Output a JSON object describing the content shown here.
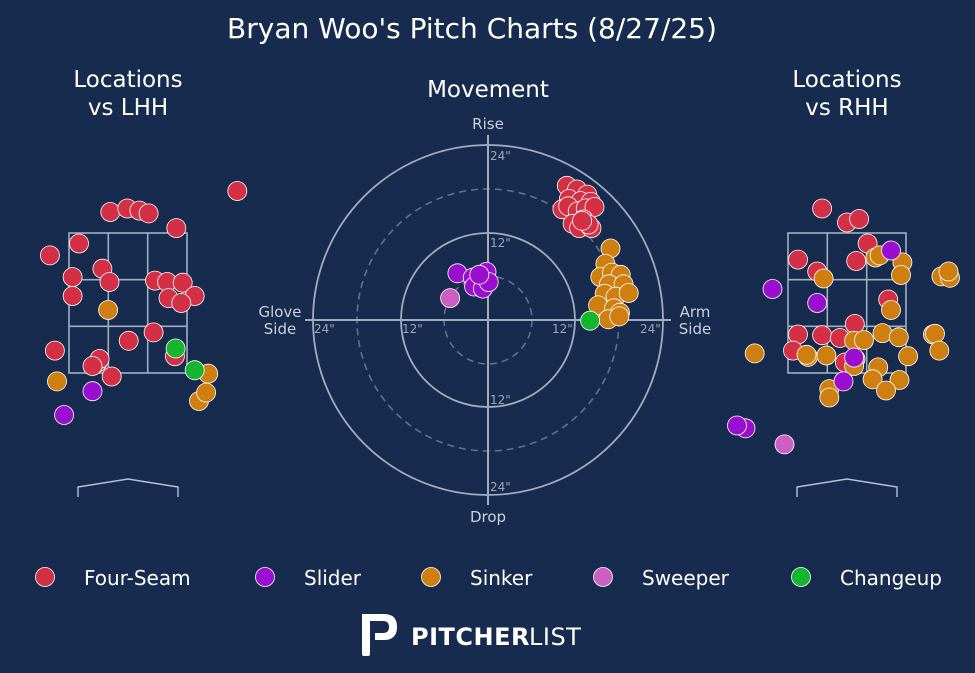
{
  "title": "Bryan Woo's Pitch Charts (8/27/25)",
  "panels": {
    "lhh_title_line1": "Locations",
    "lhh_title_line2": "vs LHH",
    "movement_title": "Movement",
    "rhh_title_line1": "Locations",
    "rhh_title_line2": "vs RHH"
  },
  "movement_axes": {
    "top": "Rise",
    "bottom": "Drop",
    "left_line1": "Glove",
    "left_line2": "Side",
    "right_line1": "Arm",
    "right_line2": "Side",
    "ticks": [
      "24\"",
      "12\"",
      "12\"",
      "24\"",
      "12\"",
      "12\"",
      "24\"",
      "24\""
    ]
  },
  "pitch_types": [
    {
      "name": "Four-Seam",
      "color": "#d32f45"
    },
    {
      "name": "Slider",
      "color": "#9a0fcf"
    },
    {
      "name": "Sinker",
      "color": "#cf7f10"
    },
    {
      "name": "Sweeper",
      "color": "#cc5fc4"
    },
    {
      "name": "Changeup",
      "color": "#15b52f"
    }
  ],
  "brand": {
    "bold": "PITCHER",
    "light": "LIST"
  },
  "chart_data": [
    {
      "type": "scatter",
      "title": "Locations vs LHH",
      "x_unit": "feet from center of plate (catcher view)",
      "y_unit": "feet above ground",
      "xlim": [
        -1.6,
        1.6
      ],
      "ylim": [
        0.0,
        5.0
      ],
      "strike_zone": {
        "x": [
          -0.83,
          0.83
        ],
        "y": [
          1.5,
          3.5
        ]
      },
      "points": [
        {
          "x": 1.54,
          "y": 4.1,
          "type": "Four-Seam"
        },
        {
          "x": -0.25,
          "y": 3.8,
          "type": "Four-Seam"
        },
        {
          "x": -0.01,
          "y": 3.85,
          "type": "Four-Seam"
        },
        {
          "x": 0.16,
          "y": 3.82,
          "type": "Four-Seam"
        },
        {
          "x": 0.29,
          "y": 3.78,
          "type": "Four-Seam"
        },
        {
          "x": 0.68,
          "y": 3.57,
          "type": "Four-Seam"
        },
        {
          "x": -1.1,
          "y": 3.18,
          "type": "Four-Seam"
        },
        {
          "x": -0.69,
          "y": 3.35,
          "type": "Four-Seam"
        },
        {
          "x": -0.36,
          "y": 2.99,
          "type": "Four-Seam"
        },
        {
          "x": -0.78,
          "y": 2.87,
          "type": "Four-Seam"
        },
        {
          "x": -0.26,
          "y": 2.8,
          "type": "Four-Seam"
        },
        {
          "x": 0.38,
          "y": 2.82,
          "type": "Four-Seam"
        },
        {
          "x": 0.55,
          "y": 2.8,
          "type": "Four-Seam"
        },
        {
          "x": 0.77,
          "y": 2.79,
          "type": "Four-Seam"
        },
        {
          "x": -0.78,
          "y": 2.6,
          "type": "Four-Seam"
        },
        {
          "x": 0.57,
          "y": 2.57,
          "type": "Four-Seam"
        },
        {
          "x": 0.94,
          "y": 2.6,
          "type": "Four-Seam"
        },
        {
          "x": 0.75,
          "y": 2.5,
          "type": "Four-Seam"
        },
        {
          "x": 0.36,
          "y": 2.08,
          "type": "Four-Seam"
        },
        {
          "x": 0.01,
          "y": 1.96,
          "type": "Four-Seam"
        },
        {
          "x": -1.03,
          "y": 1.82,
          "type": "Four-Seam"
        },
        {
          "x": -0.43,
          "y": 1.65,
          "type": "Four-Seam"
        },
        {
          "x": -0.4,
          "y": 1.7,
          "type": "Four-Seam"
        },
        {
          "x": 0.66,
          "y": 1.74,
          "type": "Four-Seam"
        },
        {
          "x": -0.23,
          "y": 1.45,
          "type": "Four-Seam"
        },
        {
          "x": -0.5,
          "y": 1.6,
          "type": "Four-Seam"
        },
        {
          "x": -0.28,
          "y": 2.4,
          "type": "Sinker"
        },
        {
          "x": -1.0,
          "y": 1.38,
          "type": "Sinker"
        },
        {
          "x": 1.13,
          "y": 1.49,
          "type": "Sinker"
        },
        {
          "x": 1.0,
          "y": 1.1,
          "type": "Sinker"
        },
        {
          "x": 1.1,
          "y": 1.22,
          "type": "Sinker"
        },
        {
          "x": -0.5,
          "y": 1.24,
          "type": "Slider"
        },
        {
          "x": -0.9,
          "y": 0.9,
          "type": "Slider"
        },
        {
          "x": 0.67,
          "y": 1.85,
          "type": "Changeup"
        },
        {
          "x": 0.94,
          "y": 1.54,
          "type": "Changeup"
        }
      ]
    },
    {
      "type": "scatter",
      "title": "Movement",
      "x_unit": "horizontal break (inches, glove side negative, arm side positive)",
      "y_unit": "induced vertical break (inches)",
      "xlim": [
        -30,
        30
      ],
      "ylim": [
        -30,
        30
      ],
      "rings_inches": [
        6,
        12,
        18,
        24
      ],
      "points": [
        {
          "x": 10.8,
          "y": 18.4,
          "type": "Four-Seam"
        },
        {
          "x": 12.2,
          "y": 17.9,
          "type": "Four-Seam"
        },
        {
          "x": 13.6,
          "y": 17.2,
          "type": "Four-Seam"
        },
        {
          "x": 11.1,
          "y": 16.6,
          "type": "Four-Seam"
        },
        {
          "x": 12.7,
          "y": 16.3,
          "type": "Four-Seam"
        },
        {
          "x": 14.1,
          "y": 16.2,
          "type": "Four-Seam"
        },
        {
          "x": 10.2,
          "y": 15.2,
          "type": "Four-Seam"
        },
        {
          "x": 11.0,
          "y": 15.6,
          "type": "Four-Seam"
        },
        {
          "x": 12.3,
          "y": 14.9,
          "type": "Four-Seam"
        },
        {
          "x": 13.4,
          "y": 15.3,
          "type": "Four-Seam"
        },
        {
          "x": 14.6,
          "y": 15.5,
          "type": "Four-Seam"
        },
        {
          "x": 11.6,
          "y": 13.2,
          "type": "Four-Seam"
        },
        {
          "x": 12.5,
          "y": 12.6,
          "type": "Four-Seam"
        },
        {
          "x": 13.1,
          "y": 13.8,
          "type": "Four-Seam"
        },
        {
          "x": 14.2,
          "y": 12.6,
          "type": "Four-Seam"
        },
        {
          "x": 13.8,
          "y": 13.1,
          "type": "Four-Seam"
        },
        {
          "x": 12.9,
          "y": 13.6,
          "type": "Four-Seam"
        },
        {
          "x": 16.8,
          "y": 9.8,
          "type": "Sinker"
        },
        {
          "x": 16.1,
          "y": 7.7,
          "type": "Sinker"
        },
        {
          "x": 15.4,
          "y": 5.9,
          "type": "Sinker"
        },
        {
          "x": 17.0,
          "y": 6.5,
          "type": "Sinker"
        },
        {
          "x": 18.2,
          "y": 6.2,
          "type": "Sinker"
        },
        {
          "x": 16.6,
          "y": 4.9,
          "type": "Sinker"
        },
        {
          "x": 18.6,
          "y": 4.9,
          "type": "Sinker"
        },
        {
          "x": 16.0,
          "y": 3.6,
          "type": "Sinker"
        },
        {
          "x": 17.5,
          "y": 3.2,
          "type": "Sinker"
        },
        {
          "x": 19.3,
          "y": 3.7,
          "type": "Sinker"
        },
        {
          "x": 15.1,
          "y": 2.0,
          "type": "Sinker"
        },
        {
          "x": 17.3,
          "y": 1.6,
          "type": "Sinker"
        },
        {
          "x": 18.1,
          "y": 1.0,
          "type": "Sinker"
        },
        {
          "x": 16.5,
          "y": 0.1,
          "type": "Sinker"
        },
        {
          "x": 18.0,
          "y": 0.5,
          "type": "Sinker"
        },
        {
          "x": 14.0,
          "y": -0.1,
          "type": "Changeup"
        },
        {
          "x": -4.2,
          "y": 6.4,
          "type": "Slider"
        },
        {
          "x": -2.1,
          "y": 5.8,
          "type": "Slider"
        },
        {
          "x": -0.2,
          "y": 6.6,
          "type": "Slider"
        },
        {
          "x": -1.9,
          "y": 4.6,
          "type": "Slider"
        },
        {
          "x": -0.7,
          "y": 4.3,
          "type": "Slider"
        },
        {
          "x": 0.1,
          "y": 5.2,
          "type": "Slider"
        },
        {
          "x": -1.2,
          "y": 6.2,
          "type": "Slider"
        },
        {
          "x": -5.2,
          "y": 3.0,
          "type": "Sweeper"
        }
      ]
    },
    {
      "type": "scatter",
      "title": "Locations vs RHH",
      "x_unit": "feet from center of plate (catcher view)",
      "y_unit": "feet above ground",
      "xlim": [
        -1.6,
        1.6
      ],
      "ylim": [
        0.0,
        5.0
      ],
      "strike_zone": {
        "x": [
          -0.83,
          0.83
        ],
        "y": [
          1.5,
          3.5
        ]
      },
      "points": [
        {
          "x": -0.35,
          "y": 3.85,
          "type": "Four-Seam"
        },
        {
          "x": 0.0,
          "y": 3.65,
          "type": "Four-Seam"
        },
        {
          "x": 0.17,
          "y": 3.7,
          "type": "Four-Seam"
        },
        {
          "x": 0.29,
          "y": 3.35,
          "type": "Four-Seam"
        },
        {
          "x": -0.69,
          "y": 3.12,
          "type": "Four-Seam"
        },
        {
          "x": -0.42,
          "y": 2.95,
          "type": "Four-Seam"
        },
        {
          "x": 0.13,
          "y": 3.1,
          "type": "Four-Seam"
        },
        {
          "x": 0.58,
          "y": 2.55,
          "type": "Four-Seam"
        },
        {
          "x": -0.69,
          "y": 2.05,
          "type": "Four-Seam"
        },
        {
          "x": -0.35,
          "y": 2.04,
          "type": "Four-Seam"
        },
        {
          "x": -0.1,
          "y": 2.0,
          "type": "Four-Seam"
        },
        {
          "x": 0.11,
          "y": 2.2,
          "type": "Four-Seam"
        },
        {
          "x": -0.76,
          "y": 1.82,
          "type": "Four-Seam"
        },
        {
          "x": -0.03,
          "y": 1.65,
          "type": "Four-Seam"
        },
        {
          "x": -0.33,
          "y": 2.85,
          "type": "Sinker"
        },
        {
          "x": 0.4,
          "y": 3.15,
          "type": "Sinker"
        },
        {
          "x": 0.46,
          "y": 3.18,
          "type": "Sinker"
        },
        {
          "x": 0.78,
          "y": 3.08,
          "type": "Sinker"
        },
        {
          "x": 0.76,
          "y": 2.9,
          "type": "Sinker"
        },
        {
          "x": 1.33,
          "y": 2.88,
          "type": "Sinker"
        },
        {
          "x": 1.45,
          "y": 2.86,
          "type": "Sinker"
        },
        {
          "x": 1.43,
          "y": 2.95,
          "type": "Sinker"
        },
        {
          "x": 0.12,
          "y": 1.7,
          "type": "Sinker"
        },
        {
          "x": -0.55,
          "y": 1.73,
          "type": "Sinker"
        },
        {
          "x": 0.1,
          "y": 1.96,
          "type": "Sinker"
        },
        {
          "x": 0.62,
          "y": 2.4,
          "type": "Sinker"
        },
        {
          "x": 0.5,
          "y": 2.07,
          "type": "Sinker"
        },
        {
          "x": 0.24,
          "y": 1.97,
          "type": "Sinker"
        },
        {
          "x": 0.73,
          "y": 2.01,
          "type": "Sinker"
        },
        {
          "x": 1.21,
          "y": 2.05,
          "type": "Sinker"
        },
        {
          "x": 1.24,
          "y": 2.06,
          "type": "Sinker"
        },
        {
          "x": 0.86,
          "y": 1.74,
          "type": "Sinker"
        },
        {
          "x": -0.29,
          "y": 1.75,
          "type": "Sinker"
        },
        {
          "x": 0.1,
          "y": 1.6,
          "type": "Sinker"
        },
        {
          "x": -0.57,
          "y": 1.76,
          "type": "Sinker"
        },
        {
          "x": 0.44,
          "y": 1.58,
          "type": "Sinker"
        },
        {
          "x": 1.3,
          "y": 1.82,
          "type": "Sinker"
        },
        {
          "x": 0.74,
          "y": 1.4,
          "type": "Sinker"
        },
        {
          "x": 0.36,
          "y": 1.41,
          "type": "Sinker"
        },
        {
          "x": 0.55,
          "y": 1.25,
          "type": "Sinker"
        },
        {
          "x": -0.25,
          "y": 1.27,
          "type": "Sinker"
        },
        {
          "x": -0.25,
          "y": 1.15,
          "type": "Sinker"
        },
        {
          "x": -1.3,
          "y": 1.78,
          "type": "Sinker"
        },
        {
          "x": 0.62,
          "y": 3.25,
          "type": "Slider"
        },
        {
          "x": -1.05,
          "y": 2.7,
          "type": "Slider"
        },
        {
          "x": -0.42,
          "y": 2.5,
          "type": "Slider"
        },
        {
          "x": -0.05,
          "y": 1.38,
          "type": "Slider"
        },
        {
          "x": 0.1,
          "y": 1.72,
          "type": "Slider"
        },
        {
          "x": -1.43,
          "y": 0.71,
          "type": "Slider"
        },
        {
          "x": -1.55,
          "y": 0.75,
          "type": "Slider"
        },
        {
          "x": -0.88,
          "y": 0.48,
          "type": "Sweeper"
        }
      ]
    }
  ]
}
